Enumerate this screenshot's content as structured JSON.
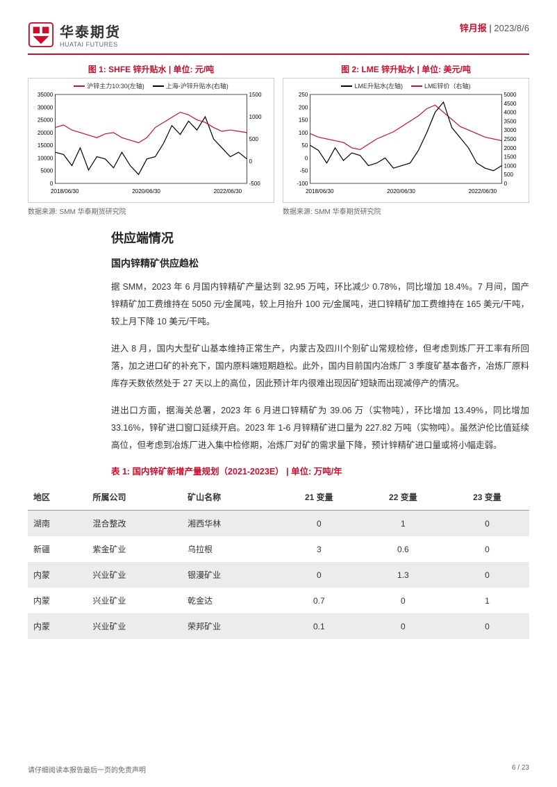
{
  "header": {
    "logo_cn": "华泰期货",
    "logo_en": "HUATAI FUTURES",
    "report_type": "锌月报",
    "sep": " | ",
    "date": "2023/8/6"
  },
  "chart1": {
    "title": "图 1: SHFE 锌升贴水 | 单位: 元/吨",
    "legend": [
      {
        "label": "沪锌主力10:30(左轴)",
        "color": "#c8102e"
      },
      {
        "label": "上海-沪锌升贴水(右轴)",
        "color": "#000000"
      }
    ],
    "y_left": {
      "min": 0,
      "max": 35000,
      "ticks": [
        0,
        5000,
        10000,
        15000,
        20000,
        25000,
        30000,
        35000
      ]
    },
    "y_right": {
      "min": -500,
      "max": 1500,
      "ticks": [
        -500,
        0,
        500,
        1000,
        1500
      ]
    },
    "x_ticks": [
      "2018/06/30",
      "2020/06/30",
      "2022/06/30"
    ],
    "series_red": [
      22000,
      23000,
      21000,
      20000,
      19000,
      18000,
      19500,
      20000,
      18000,
      17000,
      16000,
      18000,
      22000,
      24000,
      26000,
      28000,
      27000,
      25000,
      24000,
      22000,
      20500,
      21000,
      20500,
      20000
    ],
    "series_black": [
      200,
      150,
      -100,
      300,
      -200,
      100,
      50,
      -150,
      200,
      -100,
      -300,
      50,
      100,
      400,
      800,
      600,
      900,
      700,
      1000,
      500,
      300,
      100,
      200,
      50
    ],
    "source": "数据来源:  SMM 华泰期货研究院",
    "colors": {
      "axis": "#000",
      "grid": "#ddd",
      "bg": "#fff"
    }
  },
  "chart2": {
    "title": "图 2: LME 锌升贴水 | 单位: 美元/吨",
    "legend": [
      {
        "label": "LME升贴水(左轴)",
        "color": "#000000"
      },
      {
        "label": "LME锌价（右轴)",
        "color": "#c8102e"
      }
    ],
    "y_left": {
      "min": -100,
      "max": 250,
      "ticks": [
        -100,
        -50,
        0,
        50,
        100,
        150,
        200,
        250
      ]
    },
    "y_right": {
      "min": 0,
      "max": 5000,
      "ticks": [
        0,
        500,
        1000,
        1500,
        2000,
        2500,
        3000,
        3500,
        4000,
        4500,
        5000
      ]
    },
    "x_ticks": [
      "2018/06/30",
      "2020/06/30",
      "2022/06/30"
    ],
    "series_black": [
      50,
      30,
      -20,
      40,
      -10,
      20,
      10,
      -30,
      -20,
      0,
      -40,
      -30,
      -20,
      30,
      100,
      180,
      220,
      120,
      80,
      40,
      -20,
      -40,
      -50,
      -30
    ],
    "series_red": [
      2800,
      2600,
      2500,
      2400,
      2300,
      2000,
      1900,
      2200,
      2500,
      2700,
      2900,
      3200,
      3500,
      3800,
      4200,
      4400,
      4000,
      3600,
      3200,
      3000,
      2800,
      2600,
      2500,
      2400
    ],
    "source": "数据来源:  SMM 华泰期货研究院",
    "colors": {
      "axis": "#000",
      "grid": "#ddd",
      "bg": "#fff"
    }
  },
  "section": {
    "h1": "供应端情况",
    "h2": "国内锌精矿供应趋松",
    "p1": "据 SMM，2023 年 6 月国内锌精矿产量达到 32.95 万吨，环比减少 0.78%，同比增加 18.4%。7 月间，国产锌精矿加工费维持在 5050 元/金属吨，较上月抬升 100 元/金属吨，进口锌精矿加工费维持在 165 美元/干吨，较上月下降 10 美元/干吨。",
    "p2": "进入 8 月，国内大型矿山基本维持正常生产，内蒙古及四川个别矿山常规检修，但考虑到炼厂开工率有所回落，加之进口矿的补充下，国内原料端短期趋松。此外，国内目前国内冶炼厂 3 季度矿基本备齐，冶炼厂原料库存天数依然处于 27 天以上的高位，因此预计年内很难出现因矿短缺而出现减停产的情况。",
    "p3": "进出口方面，据海关总署，2023 年 6 月进口锌精矿为 39.06 万（实物吨），环比增加 13.49%，同比增加 33.16%，锌矿进口窗口延续开启。2023 年 1-6 月锌精矿进口量为 227.82 万吨（实物吨）。虽然沪伦比值延续高位，但考虑到冶炼厂进入集中检修期，冶炼厂对矿的需求量下降，预计锌精矿进口量或将小幅走弱。"
  },
  "table": {
    "title": "表 1: 国内锌矿新增产量规划（2021-2023E） | 单位: 万吨/年",
    "columns": [
      "地区",
      "所属公司",
      "矿山名称",
      "21 变量",
      "22 变量",
      "23 变量"
    ],
    "rows": [
      [
        "湖南",
        "混合整改",
        "湘西华林",
        "0",
        "1",
        "0"
      ],
      [
        "新疆",
        "紫金矿业",
        "乌拉根",
        "3",
        "0.6",
        "0"
      ],
      [
        "内蒙",
        "兴业矿业",
        "银漫矿业",
        "0",
        "1.3",
        "0"
      ],
      [
        "内蒙",
        "兴业矿业",
        "乾金达",
        "0.7",
        "0",
        "1"
      ],
      [
        "内蒙",
        "兴业矿业",
        "荣邦矿业",
        "0.1",
        "0",
        "0"
      ]
    ]
  },
  "footer": {
    "disclaimer": "请仔细阅读本报告最后一页的免责声明",
    "page": "6 / 23"
  }
}
